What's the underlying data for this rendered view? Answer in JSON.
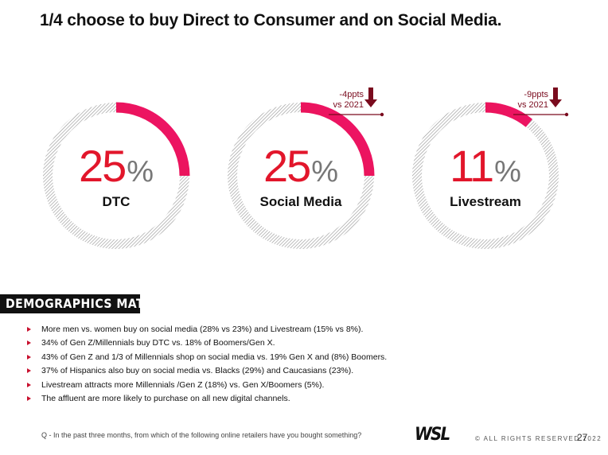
{
  "title": "1/4 choose to buy Direct to Consumer and on Social Media.",
  "chart_data": {
    "type": "donut",
    "accent_color": "#e2162b",
    "items": [
      {
        "label": "DTC",
        "value": 25,
        "unit": "%",
        "annotation": null
      },
      {
        "label": "Social Media",
        "value": 25,
        "unit": "%",
        "annotation": {
          "line1": "-4ppts",
          "line2": "vs 2021",
          "direction": "down"
        }
      },
      {
        "label": "Livestream",
        "value": 11,
        "unit": "%",
        "annotation": {
          "line1": "-9ppts",
          "line2": "vs 2021",
          "direction": "down"
        }
      }
    ]
  },
  "banner": "DEMOGRAPHICS MATTER",
  "bullets": [
    "More men vs. women buy on social media (28% vs 23%) and Livestream (15% vs 8%).",
    "34% of Gen Z/Millennials buy DTC vs. 18% of Boomers/Gen X.",
    "43% of Gen Z and 1/3 of Millennials shop on social media vs. 19% Gen X and (8%) Boomers.",
    "37% of Hispanics also buy on social media vs. Blacks (29%) and Caucasians (23%).",
    "Livestream attracts more Millennials /Gen Z (18%) vs. Gen X/Boomers (5%).",
    "The affluent are more likely to purchase on all new digital channels."
  ],
  "footnote": "Q - In the past three months, from which of the following online retailers have you bought something?",
  "footer": {
    "logo": "WSL",
    "rights": "© ALL RIGHTS RESERVED 2022",
    "page": "27"
  }
}
